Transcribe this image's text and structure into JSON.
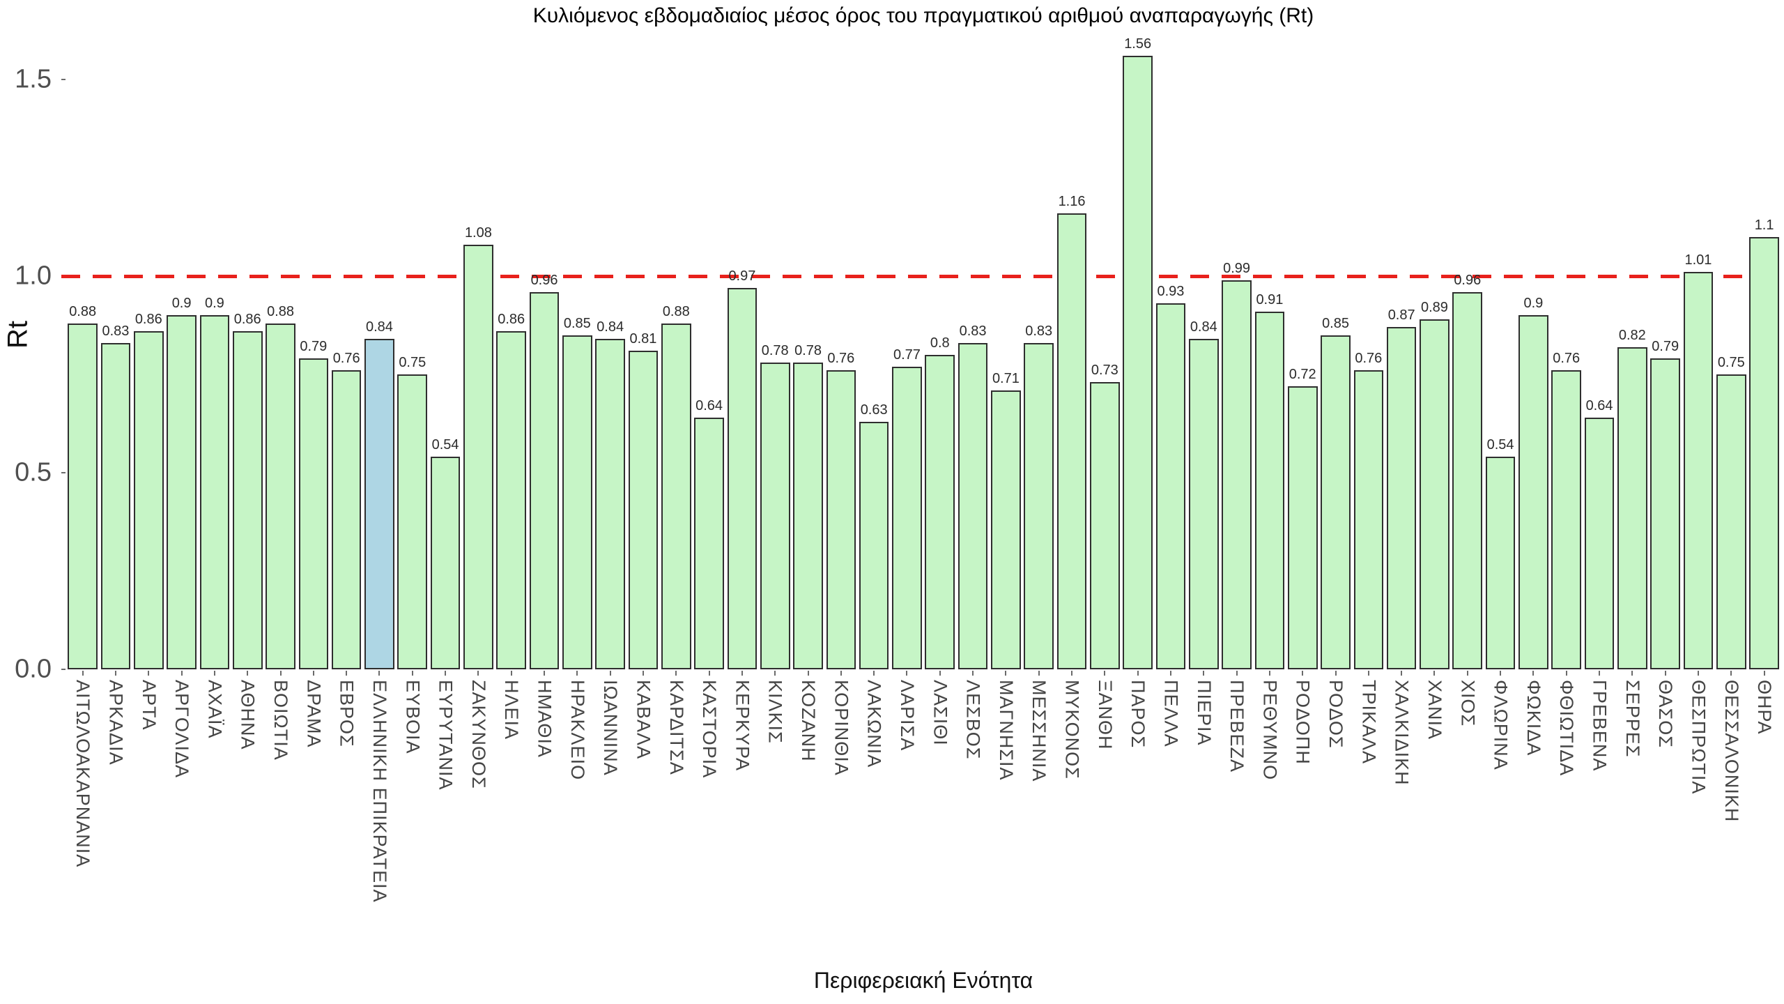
{
  "chart_data": {
    "type": "bar",
    "title": "Κυλιόμενος εβδομαδιαίος μέσος όρος του πραγματικού αριθμού αναπαραγωγής (Rt)",
    "xlabel": "Περιφερειακή Ενότητα",
    "ylabel": "Rt",
    "ylim": [
      0,
      1.7
    ],
    "grid": false,
    "legend": "none",
    "y_tick_labels": [
      "0.0",
      "0.5",
      "1.0",
      "1.5"
    ],
    "reference_line": {
      "value": 1.0,
      "style": "dashed",
      "color": "#e8211c"
    },
    "bar_color": "#c6f5c6",
    "bar_border_color": "#2e2e2e",
    "highlight_category": "ΕΛΛΗΝΙΚΗ ΕΠΙΚΡΑΤΕΙΑ",
    "highlight_color": "#aed6e4",
    "categories": [
      "ΑΙΤΩΛΟΑΚΑΡΝΑΝΙΑ",
      "ΑΡΚΑΔΙΑ",
      "ΑΡΤΑ",
      "ΑΡΓΟΛΙΔΑ",
      "ΑΧΑΪΑ",
      "ΑΘΗΝΑ",
      "ΒΟΙΩΤΙΑ",
      "ΔΡΑΜΑ",
      "ΕΒΡΟΣ",
      "ΕΛΛΗΝΙΚΗ ΕΠΙΚΡΑΤΕΙΑ",
      "ΕΥΒΟΙΑ",
      "ΕΥΡΥΤΑΝΙΑ",
      "ΖΑΚΥΝΘΟΣ",
      "ΗΛΕΙΑ",
      "ΗΜΑΘΙΑ",
      "ΗΡΑΚΛΕΙΟ",
      "ΙΩΑΝΝΙΝΑ",
      "ΚΑΒΑΛΑ",
      "ΚΑΡΔΙΤΣΑ",
      "ΚΑΣΤΟΡΙΑ",
      "ΚΕΡΚΥΡΑ",
      "ΚΙΛΚΙΣ",
      "ΚΟΖΑΝΗ",
      "ΚΟΡΙΝΘΙΑ",
      "ΛΑΚΩΝΙΑ",
      "ΛΑΡΙΣΑ",
      "ΛΑΣΙΘΙ",
      "ΛΕΣΒΟΣ",
      "ΜΑΓΝΗΣΙΑ",
      "ΜΕΣΣΗΝΙΑ",
      "ΜΥΚΟΝΟΣ",
      "ΞΑΝΘΗ",
      "ΠΑΡΟΣ",
      "ΠΕΛΛΑ",
      "ΠΙΕΡΙΑ",
      "ΠΡΕΒΕΖΑ",
      "ΡΕΘΥΜΝΟ",
      "ΡΟΔΟΠΗ",
      "ΡΟΔΟΣ",
      "ΤΡΙΚΑΛΑ",
      "ΧΑΛΚΙΔΙΚΗ",
      "ΧΑΝΙΑ",
      "ΧΙΟΣ",
      "ΦΛΩΡΙΝΑ",
      "ΦΩΚΙΔΑ",
      "ΦΘΙΩΤΙΔΑ",
      "ΓΡΕΒΕΝΑ",
      "ΣΕΡΡΕΣ",
      "ΘΑΣΟΣ",
      "ΘΕΣΠΡΩΤΙΑ",
      "ΘΕΣΣΑΛΟΝΙΚΗ",
      "ΘΗΡΑ"
    ],
    "values": [
      0.88,
      0.83,
      0.86,
      0.9,
      0.9,
      0.86,
      0.88,
      0.79,
      0.76,
      0.84,
      0.75,
      0.54,
      1.08,
      0.86,
      0.96,
      0.85,
      0.84,
      0.81,
      0.88,
      0.64,
      0.97,
      0.78,
      0.78,
      0.76,
      0.63,
      0.77,
      0.8,
      0.83,
      0.71,
      0.83,
      1.16,
      0.73,
      1.56,
      0.93,
      0.84,
      0.99,
      0.91,
      0.72,
      0.85,
      0.76,
      0.87,
      0.89,
      0.96,
      0.54,
      0.9,
      0.76,
      0.64,
      0.82,
      0.79,
      1.01,
      0.75,
      1.1
    ]
  }
}
